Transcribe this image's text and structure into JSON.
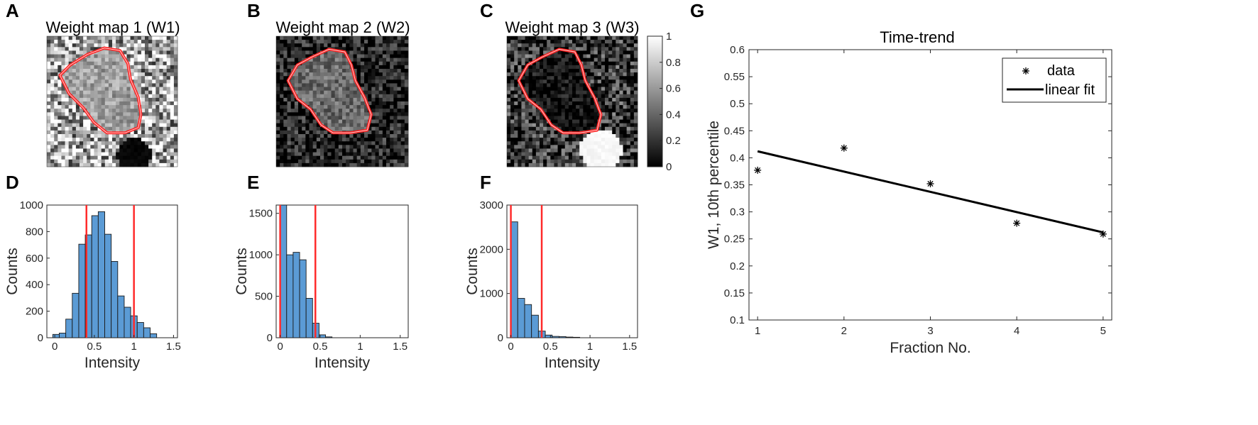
{
  "panel_labels": {
    "a": "A",
    "b": "B",
    "c": "C",
    "d": "D",
    "e": "E",
    "f": "F",
    "g": "G"
  },
  "colors": {
    "bar": "#5b9bd5",
    "marker": "#ff2b2b",
    "contour": "#ff2020",
    "fit": "#000000"
  },
  "chart_data": [
    {
      "id": "A",
      "type": "heatmap",
      "title": "Weight map 1 (W1)",
      "grid_size": 36,
      "intensity_range": [
        0,
        1
      ],
      "roi": "red contour"
    },
    {
      "id": "B",
      "type": "heatmap",
      "title": "Weight map 2 (W2)",
      "grid_size": 36,
      "intensity_range": [
        0,
        1
      ],
      "roi": "red contour"
    },
    {
      "id": "C",
      "type": "heatmap",
      "title": "Weight map 3 (W3)",
      "grid_size": 36,
      "intensity_range": [
        0,
        1
      ],
      "roi": "red contour",
      "colorbar": {
        "ticks": [
          "0",
          "0.2",
          "0.4",
          "0.6",
          "0.8",
          "1"
        ],
        "range": [
          0,
          1
        ]
      }
    },
    {
      "id": "D",
      "type": "bar",
      "title": "",
      "xlabel": "Intensity",
      "ylabel": "Counts",
      "xlim": [
        -0.1,
        1.55
      ],
      "ylim": [
        0,
        1000
      ],
      "xticks": [
        "0",
        "0.5",
        "1",
        "1.5"
      ],
      "yticks": [
        "0",
        "200",
        "400",
        "600",
        "800",
        "1000"
      ],
      "bin_start": -0.025,
      "bin_width": 0.082,
      "values": [
        25,
        35,
        140,
        335,
        705,
        775,
        920,
        950,
        780,
        575,
        315,
        230,
        165,
        115,
        75,
        30
      ],
      "vlines": [
        0.4,
        1.0
      ]
    },
    {
      "id": "E",
      "type": "bar",
      "title": "",
      "xlabel": "Intensity",
      "ylabel": "Counts",
      "xlim": [
        -0.05,
        1.6
      ],
      "ylim": [
        0,
        1600
      ],
      "xticks": [
        "0",
        "0.5",
        "1",
        "1.5"
      ],
      "yticks": [
        "0",
        "500",
        "1000",
        "1500"
      ],
      "bin_start": 0.0,
      "bin_width": 0.081,
      "values": [
        1600,
        1000,
        1030,
        940,
        475,
        175,
        35,
        10
      ],
      "vlines": [
        0.0,
        0.44
      ]
    },
    {
      "id": "F",
      "type": "bar",
      "title": "",
      "xlabel": "Intensity",
      "ylabel": "Counts",
      "xlim": [
        -0.05,
        1.6
      ],
      "ylim": [
        0,
        3000
      ],
      "xticks": [
        "0",
        "0.5",
        "1",
        "1.5"
      ],
      "yticks": [
        "0",
        "1000",
        "2000",
        "3000"
      ],
      "bin_start": 0.0,
      "bin_width": 0.087,
      "values": [
        2620,
        890,
        750,
        510,
        150,
        60,
        30,
        25,
        15,
        10
      ],
      "vlines": [
        0.0,
        0.39
      ]
    },
    {
      "id": "G",
      "type": "scatter",
      "title": "Time-trend",
      "xlabel": "Fraction No.",
      "ylabel": "W1, 10th percentile",
      "xlim": [
        0.9,
        5.1
      ],
      "ylim": [
        0.1,
        0.6
      ],
      "xticks": [
        "1",
        "2",
        "3",
        "4",
        "5"
      ],
      "yticks": [
        "0.1",
        "0.15",
        "0.2",
        "0.25",
        "0.3",
        "0.35",
        "0.4",
        "0.45",
        "0.5",
        "0.55",
        "0.6"
      ],
      "x": [
        1,
        2,
        3,
        4,
        5
      ],
      "y": [
        0.377,
        0.418,
        0.352,
        0.279,
        0.259
      ],
      "fit": {
        "x": [
          1,
          5
        ],
        "y": [
          0.412,
          0.262
        ]
      },
      "legend": {
        "position": "top-right",
        "entries": [
          "data",
          "linear fit"
        ]
      }
    }
  ]
}
